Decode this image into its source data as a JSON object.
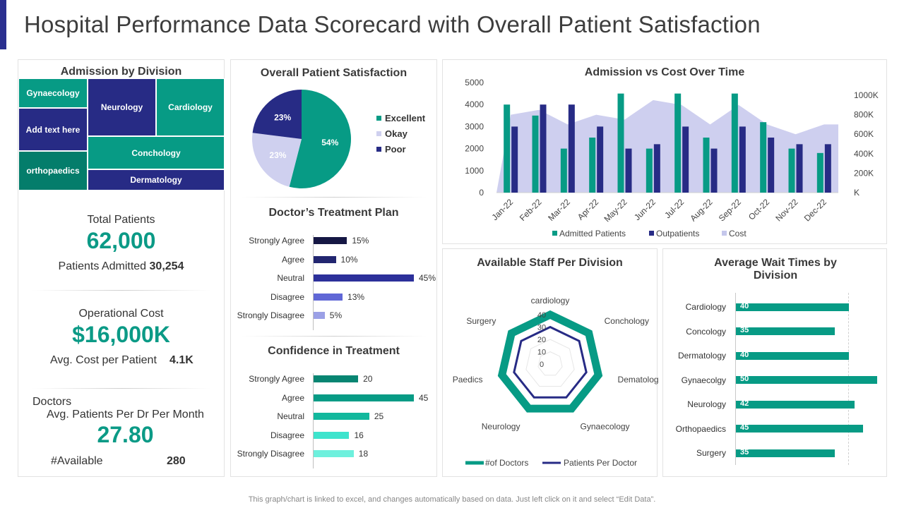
{
  "title": "Hospital Performance Data Scorecard with Overall Patient Satisfaction",
  "footer": "This graph/chart is linked to excel, and changes automatically based on data. Just left click on it and select “Edit Data”.",
  "colors": {
    "teal": "#079b85",
    "navy": "#272b85",
    "lavender": "#c5c7ec",
    "accent": "#2a2f8f"
  },
  "admission_by_division": {
    "title": "Admission by Division",
    "cells": [
      "Gynaecology",
      "Add text here",
      "orthopaedics",
      "Neurology",
      "Cardiology",
      "Conchology",
      "Dermatology"
    ]
  },
  "kpis": {
    "total_patients_label": "Total Patients",
    "total_patients_value": "62,000",
    "patients_admitted_label": "Patients Admitted",
    "patients_admitted_value": "30,254",
    "operational_cost_label": "Operational Cost",
    "operational_cost_value": "$16,000K",
    "avg_cost_label": "Avg. Cost per Patient",
    "avg_cost_value": "4.1K",
    "doctors_label": "Doctors",
    "avg_patients_label": "Avg. Patients Per Dr Per Month",
    "avg_patients_value": "27.80",
    "available_label": "#Available",
    "available_value": "280"
  },
  "chart_data": [
    {
      "id": "satisfaction",
      "type": "pie",
      "title": "Overall Patient Satisfaction",
      "categories": [
        "Excellent",
        "Okay",
        "Poor"
      ],
      "values": [
        54,
        23,
        23
      ],
      "labels": [
        "54%",
        "23%",
        "23%"
      ],
      "colors": [
        "#079b85",
        "#cfd0ef",
        "#272b85"
      ],
      "legend": "right"
    },
    {
      "id": "treatment_plan",
      "type": "bar",
      "orientation": "horizontal",
      "title": "Doctor’s Treatment Plan",
      "categories": [
        "Strongly Agree",
        "Agree",
        "Neutral",
        "Disagree",
        "Strongly Disagree"
      ],
      "values": [
        15,
        10,
        45,
        13,
        5
      ],
      "labels": [
        "15%",
        "10%",
        "45%",
        "13%",
        "5%"
      ],
      "colors": [
        "#151744",
        "#222670",
        "#2c309a",
        "#6067d6",
        "#9ba0e6"
      ],
      "xlim": [
        0,
        45
      ]
    },
    {
      "id": "confidence",
      "type": "bar",
      "orientation": "horizontal",
      "title": "Confidence in Treatment",
      "categories": [
        "Strongly Agree",
        "Agree",
        "Neutral",
        "Disagree",
        "Strongly Disagree"
      ],
      "values": [
        20,
        45,
        25,
        16,
        18
      ],
      "labels": [
        "20",
        "45",
        "25",
        "16",
        "18"
      ],
      "colors": [
        "#078572",
        "#079b85",
        "#12b89d",
        "#3ee4cd",
        "#6ef0dd"
      ],
      "xlim": [
        0,
        45
      ]
    },
    {
      "id": "admission_cost",
      "type": "bar",
      "title": "Admission vs Cost Over Time",
      "categories": [
        "Jan-22",
        "Feb-22",
        "Mar-22",
        "Apr-22",
        "May-22",
        "Jun-22",
        "Jul-22",
        "Aug-22",
        "Sep-22",
        "Oct-22",
        "Nov-22",
        "Dec-22"
      ],
      "series": [
        {
          "name": "Admitted Patients",
          "type": "bar",
          "axis": "left",
          "values": [
            4000,
            3500,
            2000,
            2500,
            4500,
            2000,
            4500,
            2500,
            4500,
            3200,
            2000,
            1800
          ]
        },
        {
          "name": "Outpatients",
          "type": "bar",
          "axis": "left",
          "values": [
            3000,
            4000,
            4000,
            3000,
            2000,
            2200,
            3000,
            2000,
            3000,
            2500,
            2200,
            2200
          ]
        },
        {
          "name": "Cost",
          "type": "area",
          "axis": "right",
          "values": [
            800000,
            850000,
            700000,
            800000,
            750000,
            950000,
            900000,
            700000,
            900000,
            700000,
            600000,
            700000
          ]
        }
      ],
      "ylim": [
        0,
        5000
      ],
      "yticks": [
        "0",
        "1000",
        "2000",
        "3000",
        "4000",
        "5000"
      ],
      "y2lim": [
        0,
        1000000
      ],
      "y2ticks": [
        "K",
        "200K",
        "400K",
        "600K",
        "800K",
        "1000K"
      ],
      "legend": "bottom"
    },
    {
      "id": "staff",
      "type": "radar",
      "title": "Available Staff Per Division",
      "categories": [
        "cardiology",
        "Conchology",
        "Dematology",
        "Gynaecology",
        "Neurology",
        "Paedics",
        "Surgery"
      ],
      "series": [
        {
          "name": "#of Doctors",
          "values": [
            40,
            40,
            40,
            40,
            40,
            40,
            40
          ]
        },
        {
          "name": "Patients Per Doctor",
          "values": [
            30,
            30,
            30,
            30,
            30,
            30,
            30
          ]
        }
      ],
      "rlim": [
        0,
        40
      ],
      "rticks": [
        "0",
        "10",
        "20",
        "30",
        "40"
      ],
      "legend": "bottom"
    },
    {
      "id": "wait_times",
      "type": "bar",
      "orientation": "horizontal",
      "title": "Average Wait Times by Division",
      "categories": [
        "Cardiology",
        "Concology",
        "Dermatology",
        "Gynaecolgy",
        "Neurology",
        "Orthopaedics",
        "Surgery"
      ],
      "values": [
        40,
        35,
        40,
        50,
        42,
        45,
        35
      ],
      "labels": [
        "40",
        "35",
        "40",
        "50",
        "42",
        "45",
        "35"
      ],
      "xlim": [
        0,
        50
      ]
    }
  ]
}
